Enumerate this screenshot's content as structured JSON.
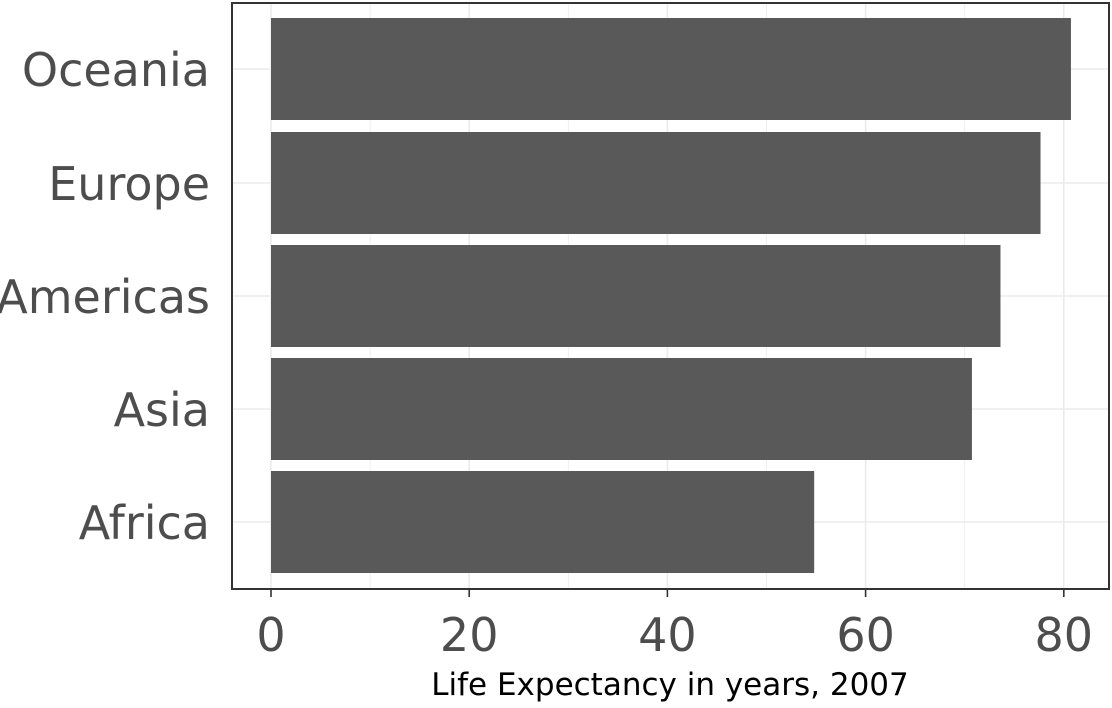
{
  "chart_data": {
    "type": "bar",
    "orientation": "horizontal",
    "categories": [
      "Oceania",
      "Europe",
      "Americas",
      "Asia",
      "Africa"
    ],
    "values": [
      80.72,
      77.65,
      73.61,
      70.73,
      54.81
    ],
    "title": "",
    "xlabel": "Life Expectancy in years, 2007",
    "ylabel": "",
    "xlim": [
      0,
      82
    ],
    "x_ticks": [
      0,
      20,
      40,
      60,
      80
    ],
    "grid": true,
    "bar_color": "#595959",
    "grid_color": "#ebebeb",
    "panel_border_color": "#333333",
    "text_color": "#4d4d4d"
  }
}
